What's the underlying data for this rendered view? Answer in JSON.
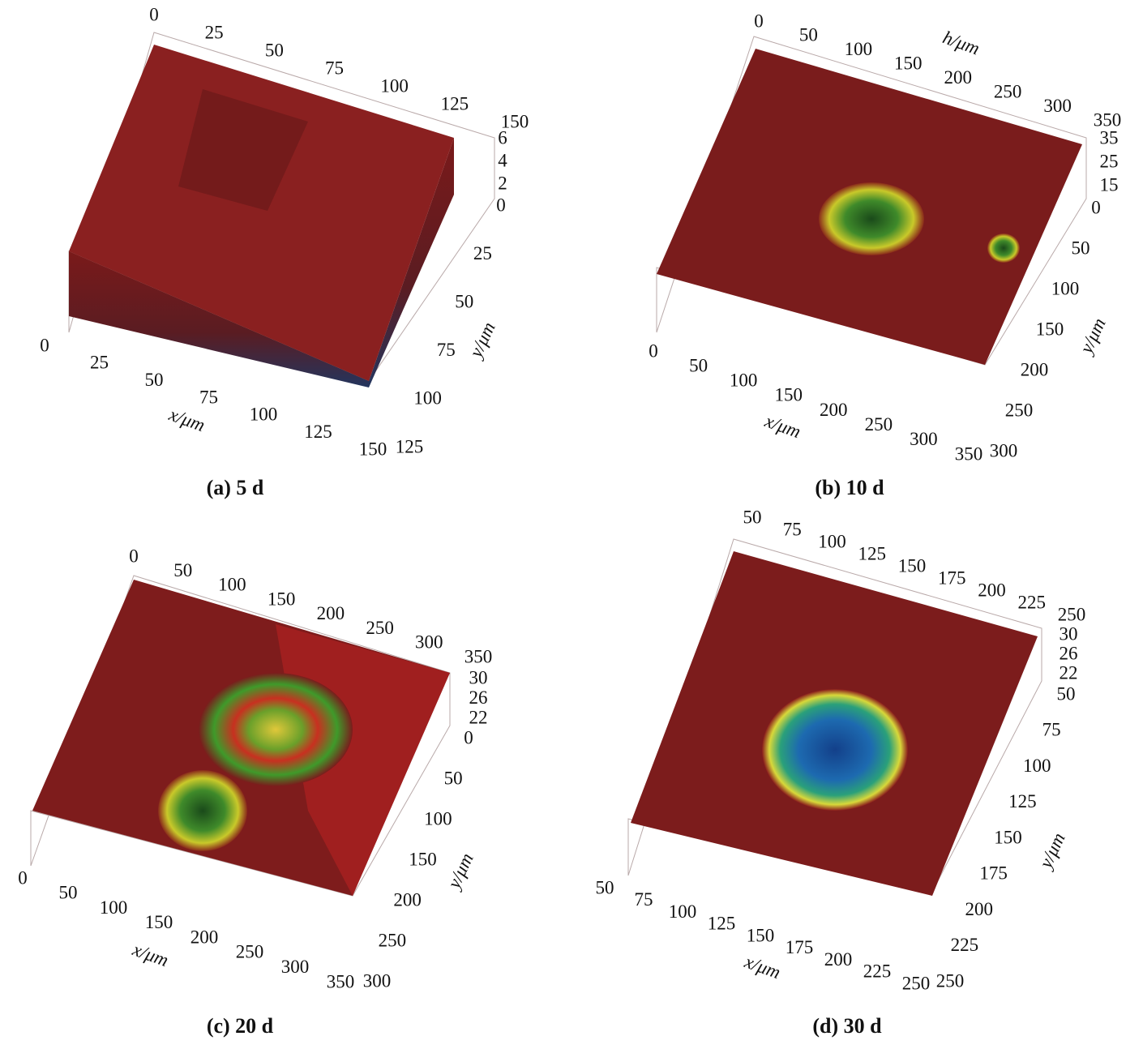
{
  "panels": [
    {
      "caption": "(a) 5 d",
      "x_label": "x/μm",
      "y_label": "y/μm",
      "top_ticks": [
        0,
        25,
        50,
        75,
        100,
        125,
        150
      ],
      "h_ticks": [
        6,
        4,
        2
      ],
      "y_ticks": [
        0,
        25,
        50,
        75,
        100,
        125
      ],
      "x_ticks": [
        0,
        25,
        50,
        75,
        100,
        125,
        150
      ]
    },
    {
      "caption": "(b) 10 d",
      "x_label": "x/μm",
      "y_label": "y/μm",
      "h_label": "h/μm",
      "top_ticks": [
        0,
        50,
        100,
        150,
        200,
        250,
        300,
        350
      ],
      "h_ticks": [
        35,
        25,
        15
      ],
      "y_ticks": [
        0,
        50,
        100,
        150,
        200,
        250,
        300
      ],
      "x_ticks": [
        0,
        50,
        100,
        150,
        200,
        250,
        300,
        350
      ]
    },
    {
      "caption": "(c) 20 d",
      "x_label": "x/μm",
      "y_label": "y/μm",
      "top_ticks": [
        0,
        50,
        100,
        150,
        200,
        250,
        300,
        350
      ],
      "h_ticks": [
        30,
        26,
        22
      ],
      "y_ticks": [
        0,
        50,
        100,
        150,
        200,
        250,
        300
      ],
      "x_ticks": [
        0,
        50,
        100,
        150,
        200,
        250,
        300,
        350
      ]
    },
    {
      "caption": "(d) 30 d",
      "x_label": "x/μm",
      "y_label": "y/μm",
      "top_ticks": [
        50,
        75,
        100,
        125,
        150,
        175,
        200,
        225,
        250
      ],
      "h_ticks": [
        30,
        26,
        22
      ],
      "y_ticks": [
        50,
        75,
        100,
        125,
        150,
        175,
        200,
        225,
        250
      ],
      "x_ticks": [
        50,
        75,
        100,
        125,
        150,
        175,
        200,
        225,
        250
      ]
    }
  ]
}
